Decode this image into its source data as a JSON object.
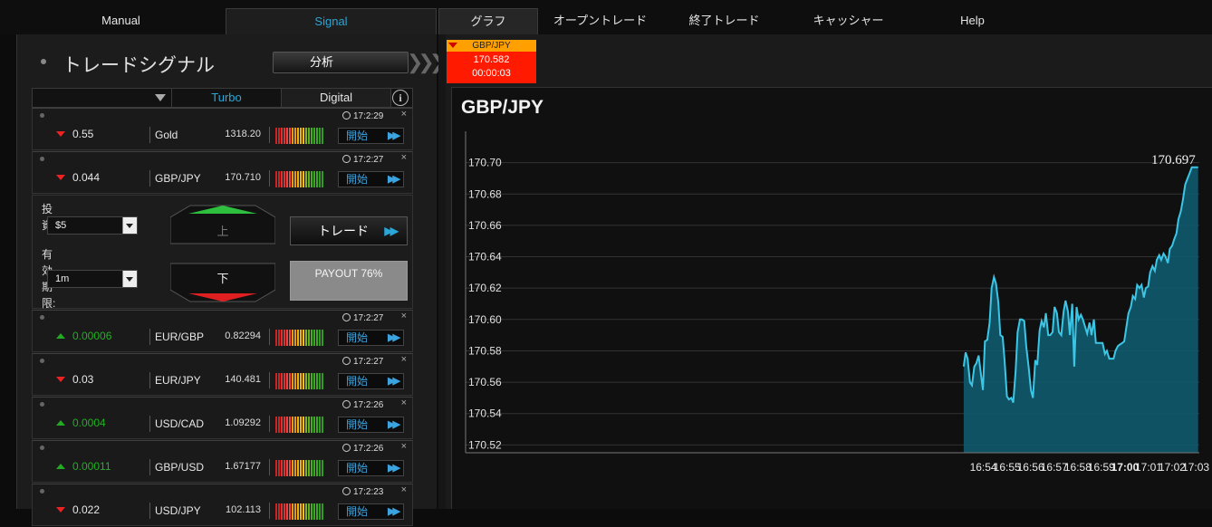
{
  "nav": {
    "left_tabs": [
      "Manual",
      "Signal"
    ],
    "right_tabs": [
      "グラフ",
      "オープントレード",
      "終了トレード",
      "キャッシャー",
      "Help"
    ]
  },
  "panel": {
    "title": "トレードシグナル",
    "analysis_button": "分析",
    "filter_tabs": [
      "Turbo",
      "Digital"
    ],
    "info_icon": "i"
  },
  "signals": [
    {
      "dir": "down",
      "change": "0.55",
      "asset": "Gold",
      "price": "1318.20",
      "time": "17:2:29",
      "open": "開始"
    },
    {
      "dir": "down",
      "change": "0.044",
      "asset": "GBP/JPY",
      "price": "170.710",
      "time": "17:2:27",
      "open": "開始"
    },
    {
      "dir": "up",
      "change": "0.00006",
      "asset": "EUR/GBP",
      "price": "0.82294",
      "time": "17:2:27",
      "open": "開始"
    },
    {
      "dir": "down",
      "change": "0.03",
      "asset": "EUR/JPY",
      "price": "140.481",
      "time": "17:2:27",
      "open": "開始"
    },
    {
      "dir": "up",
      "change": "0.0004",
      "asset": "USD/CAD",
      "price": "1.09292",
      "time": "17:2:26",
      "open": "開始"
    },
    {
      "dir": "up",
      "change": "0.00011",
      "asset": "GBP/USD",
      "price": "1.67177",
      "time": "17:2:26",
      "open": "開始"
    },
    {
      "dir": "down",
      "change": "0.022",
      "asset": "USD/JPY",
      "price": "102.113",
      "time": "17:2:23",
      "open": "開始"
    }
  ],
  "trade_form": {
    "invest_label": "投資:",
    "invest_value": "$5",
    "expiry_label": "有効期限:",
    "expiry_value": "1m",
    "up_label": "上",
    "down_label": "下",
    "trade_button": "トレード",
    "payout": "PAYOUT 76%"
  },
  "ticker": {
    "pair": "GBP/JPY",
    "price": "170.582",
    "countdown": "00:00:03"
  },
  "colors": {
    "accent": "#2aa7d6",
    "up": "#22b022",
    "down": "#e22222",
    "ticker_bg": "#ff1a00",
    "ticker_head": "#ffa000",
    "chart_fill": "#0f5a6e",
    "chart_line": "#3cc6e6"
  },
  "chart_data": {
    "type": "area",
    "title": "GBP/JPY",
    "last_value_label": "170.697",
    "ylim": [
      170.515,
      170.72
    ],
    "yticks": [
      170.52,
      170.54,
      170.56,
      170.58,
      170.6,
      170.62,
      170.64,
      170.66,
      170.68,
      170.7
    ],
    "ytick_labels": [
      "170.52",
      "170.54",
      "170.56",
      "170.58",
      "170.60",
      "170.62",
      "170.64",
      "170.66",
      "170.68",
      "170.70"
    ],
    "xlim": [
      16.5344,
      17.0525
    ],
    "xticks": [
      16.9,
      16.9167,
      16.9333,
      16.95,
      16.9667,
      16.9833,
      17.0,
      17.0167,
      17.0333,
      17.05
    ],
    "xtick_labels": [
      "16:54",
      "16:55",
      "16:56",
      "16:57",
      "16:58",
      "16:59",
      "17:00",
      "17:01",
      "17:02",
      "17:03"
    ],
    "bold_tick": "17:00",
    "times": [
      "16:53:10",
      "16:53:15",
      "16:53:20",
      "16:53:26",
      "16:53:31",
      "16:53:37",
      "16:53:42",
      "16:53:48",
      "16:53:53",
      "16:53:59",
      "16:54:04",
      "16:54:10",
      "16:54:16",
      "16:54:21",
      "16:54:27",
      "16:54:32",
      "16:54:38",
      "16:54:43",
      "16:54:49",
      "16:54:54",
      "16:55:00",
      "16:55:05",
      "16:55:11",
      "16:55:16",
      "16:55:22",
      "16:55:27",
      "16:55:33",
      "16:55:38",
      "16:55:44",
      "16:55:49",
      "16:55:55",
      "16:56:01",
      "16:56:06",
      "16:56:12",
      "16:56:17",
      "16:56:23",
      "16:56:28",
      "16:56:34",
      "16:56:39",
      "16:56:45",
      "16:56:50",
      "16:56:56",
      "16:57:01",
      "16:57:07",
      "16:57:12",
      "16:57:18",
      "16:57:24",
      "16:57:29",
      "16:57:35",
      "16:57:40",
      "16:57:46",
      "16:57:51",
      "16:57:57",
      "16:58:02",
      "16:58:08",
      "16:58:13",
      "16:58:19",
      "16:58:24",
      "16:58:30",
      "16:58:35",
      "16:58:41",
      "16:58:46",
      "16:58:52",
      "16:58:58",
      "16:59:03",
      "16:59:09",
      "16:59:14",
      "16:59:20",
      "16:59:25",
      "16:59:31",
      "16:59:36",
      "16:59:42",
      "16:59:47",
      "16:59:53",
      "16:59:58",
      "17:00:04",
      "17:00:09",
      "17:00:15",
      "17:00:20",
      "17:00:26",
      "17:00:31",
      "17:00:37",
      "17:00:42",
      "17:00:48",
      "17:00:53",
      "17:00:59",
      "17:01:04",
      "17:01:10",
      "17:01:16",
      "17:01:21",
      "17:01:27",
      "17:01:32",
      "17:01:38",
      "17:01:43",
      "17:01:49",
      "17:01:54",
      "17:02:00",
      "17:02:05",
      "17:02:11",
      "17:02:16",
      "17:02:22",
      "17:02:27",
      "17:02:33",
      "17:02:39",
      "17:02:44",
      "17:02:50",
      "17:02:55",
      "17:03:01",
      "17:03:06"
    ],
    "values": [
      170.57,
      170.579,
      170.575,
      170.56,
      170.558,
      170.57,
      170.572,
      170.577,
      170.567,
      170.555,
      170.586,
      170.587,
      170.598,
      170.62,
      170.627,
      170.623,
      170.611,
      170.59,
      170.589,
      170.574,
      170.551,
      170.549,
      170.55,
      170.547,
      170.567,
      170.592,
      170.6,
      170.6,
      170.599,
      170.583,
      170.57,
      170.555,
      170.55,
      170.574,
      170.571,
      170.593,
      170.599,
      170.595,
      170.604,
      170.59,
      170.59,
      170.592,
      170.608,
      170.604,
      170.592,
      170.59,
      170.605,
      170.612,
      170.605,
      170.59,
      170.61,
      170.57,
      170.608,
      170.6,
      170.603,
      170.6,
      170.595,
      170.591,
      170.598,
      170.59,
      170.6,
      170.585,
      170.585,
      170.585,
      170.585,
      170.578,
      170.58,
      170.575,
      170.575,
      170.575,
      170.58,
      170.583,
      170.584,
      170.585,
      170.586,
      170.596,
      170.604,
      170.608,
      170.615,
      170.613,
      170.622,
      170.62,
      170.622,
      170.614,
      170.62,
      170.621,
      170.63,
      170.634,
      170.631,
      170.638,
      170.641,
      170.638,
      170.642,
      170.64,
      170.636,
      170.645,
      170.647,
      170.651,
      170.655,
      170.664,
      170.669,
      170.676,
      170.686,
      170.69,
      170.693,
      170.697,
      170.697,
      170.697,
      170.697
    ]
  }
}
